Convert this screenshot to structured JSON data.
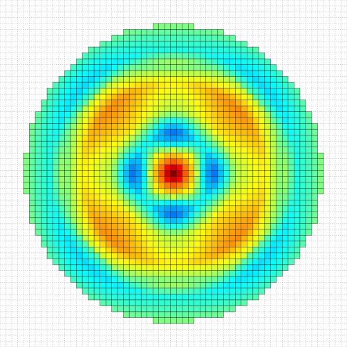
{
  "chart_data": {
    "type": "heatmap",
    "rows": 59,
    "cols": 59,
    "colormap": "jet"
  }
}
